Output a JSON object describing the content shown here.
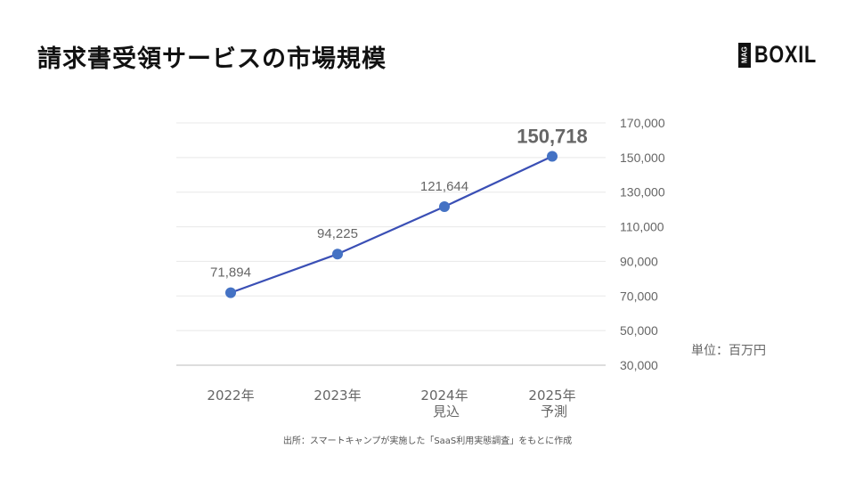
{
  "title": "請求書受領サービスの市場規模",
  "logo": {
    "badge": "MAG",
    "name": "BOXIL"
  },
  "unit_label": "単位：百万円",
  "source_note": "出所：スマートキャンプが実施した「SaaS利用実態調査」をもとに作成",
  "colors": {
    "line": "#3a4fb5",
    "marker": "#4472c4",
    "grid": "#e8e8e8",
    "axis": "#bbbbbb",
    "text": "#666666"
  },
  "chart_data": {
    "type": "line",
    "title": "請求書受領サービスの市場規模",
    "xlabel": "",
    "ylabel": "単位：百万円",
    "categories": [
      "2022年",
      "2023年",
      "2024年 見込",
      "2025年 予測"
    ],
    "category_lines": [
      [
        "2022年"
      ],
      [
        "2023年"
      ],
      [
        "2024年",
        "見込"
      ],
      [
        "2025年",
        "予測"
      ]
    ],
    "series": [
      {
        "name": "市場規模",
        "values": [
          71894,
          94225,
          121644,
          150718
        ],
        "labels": [
          "71,894",
          "94,225",
          "121,644",
          "150,718"
        ]
      }
    ],
    "ylim": [
      30000,
      170000
    ],
    "yticks": [
      30000,
      50000,
      70000,
      90000,
      110000,
      130000,
      150000,
      170000
    ],
    "ytick_labels": [
      "30,000",
      "50,000",
      "70,000",
      "90,000",
      "110,000",
      "130,000",
      "150,000",
      "170,000"
    ],
    "y_axis_position": "right",
    "grid": true,
    "legend": "none",
    "highlight_last_label": true
  }
}
